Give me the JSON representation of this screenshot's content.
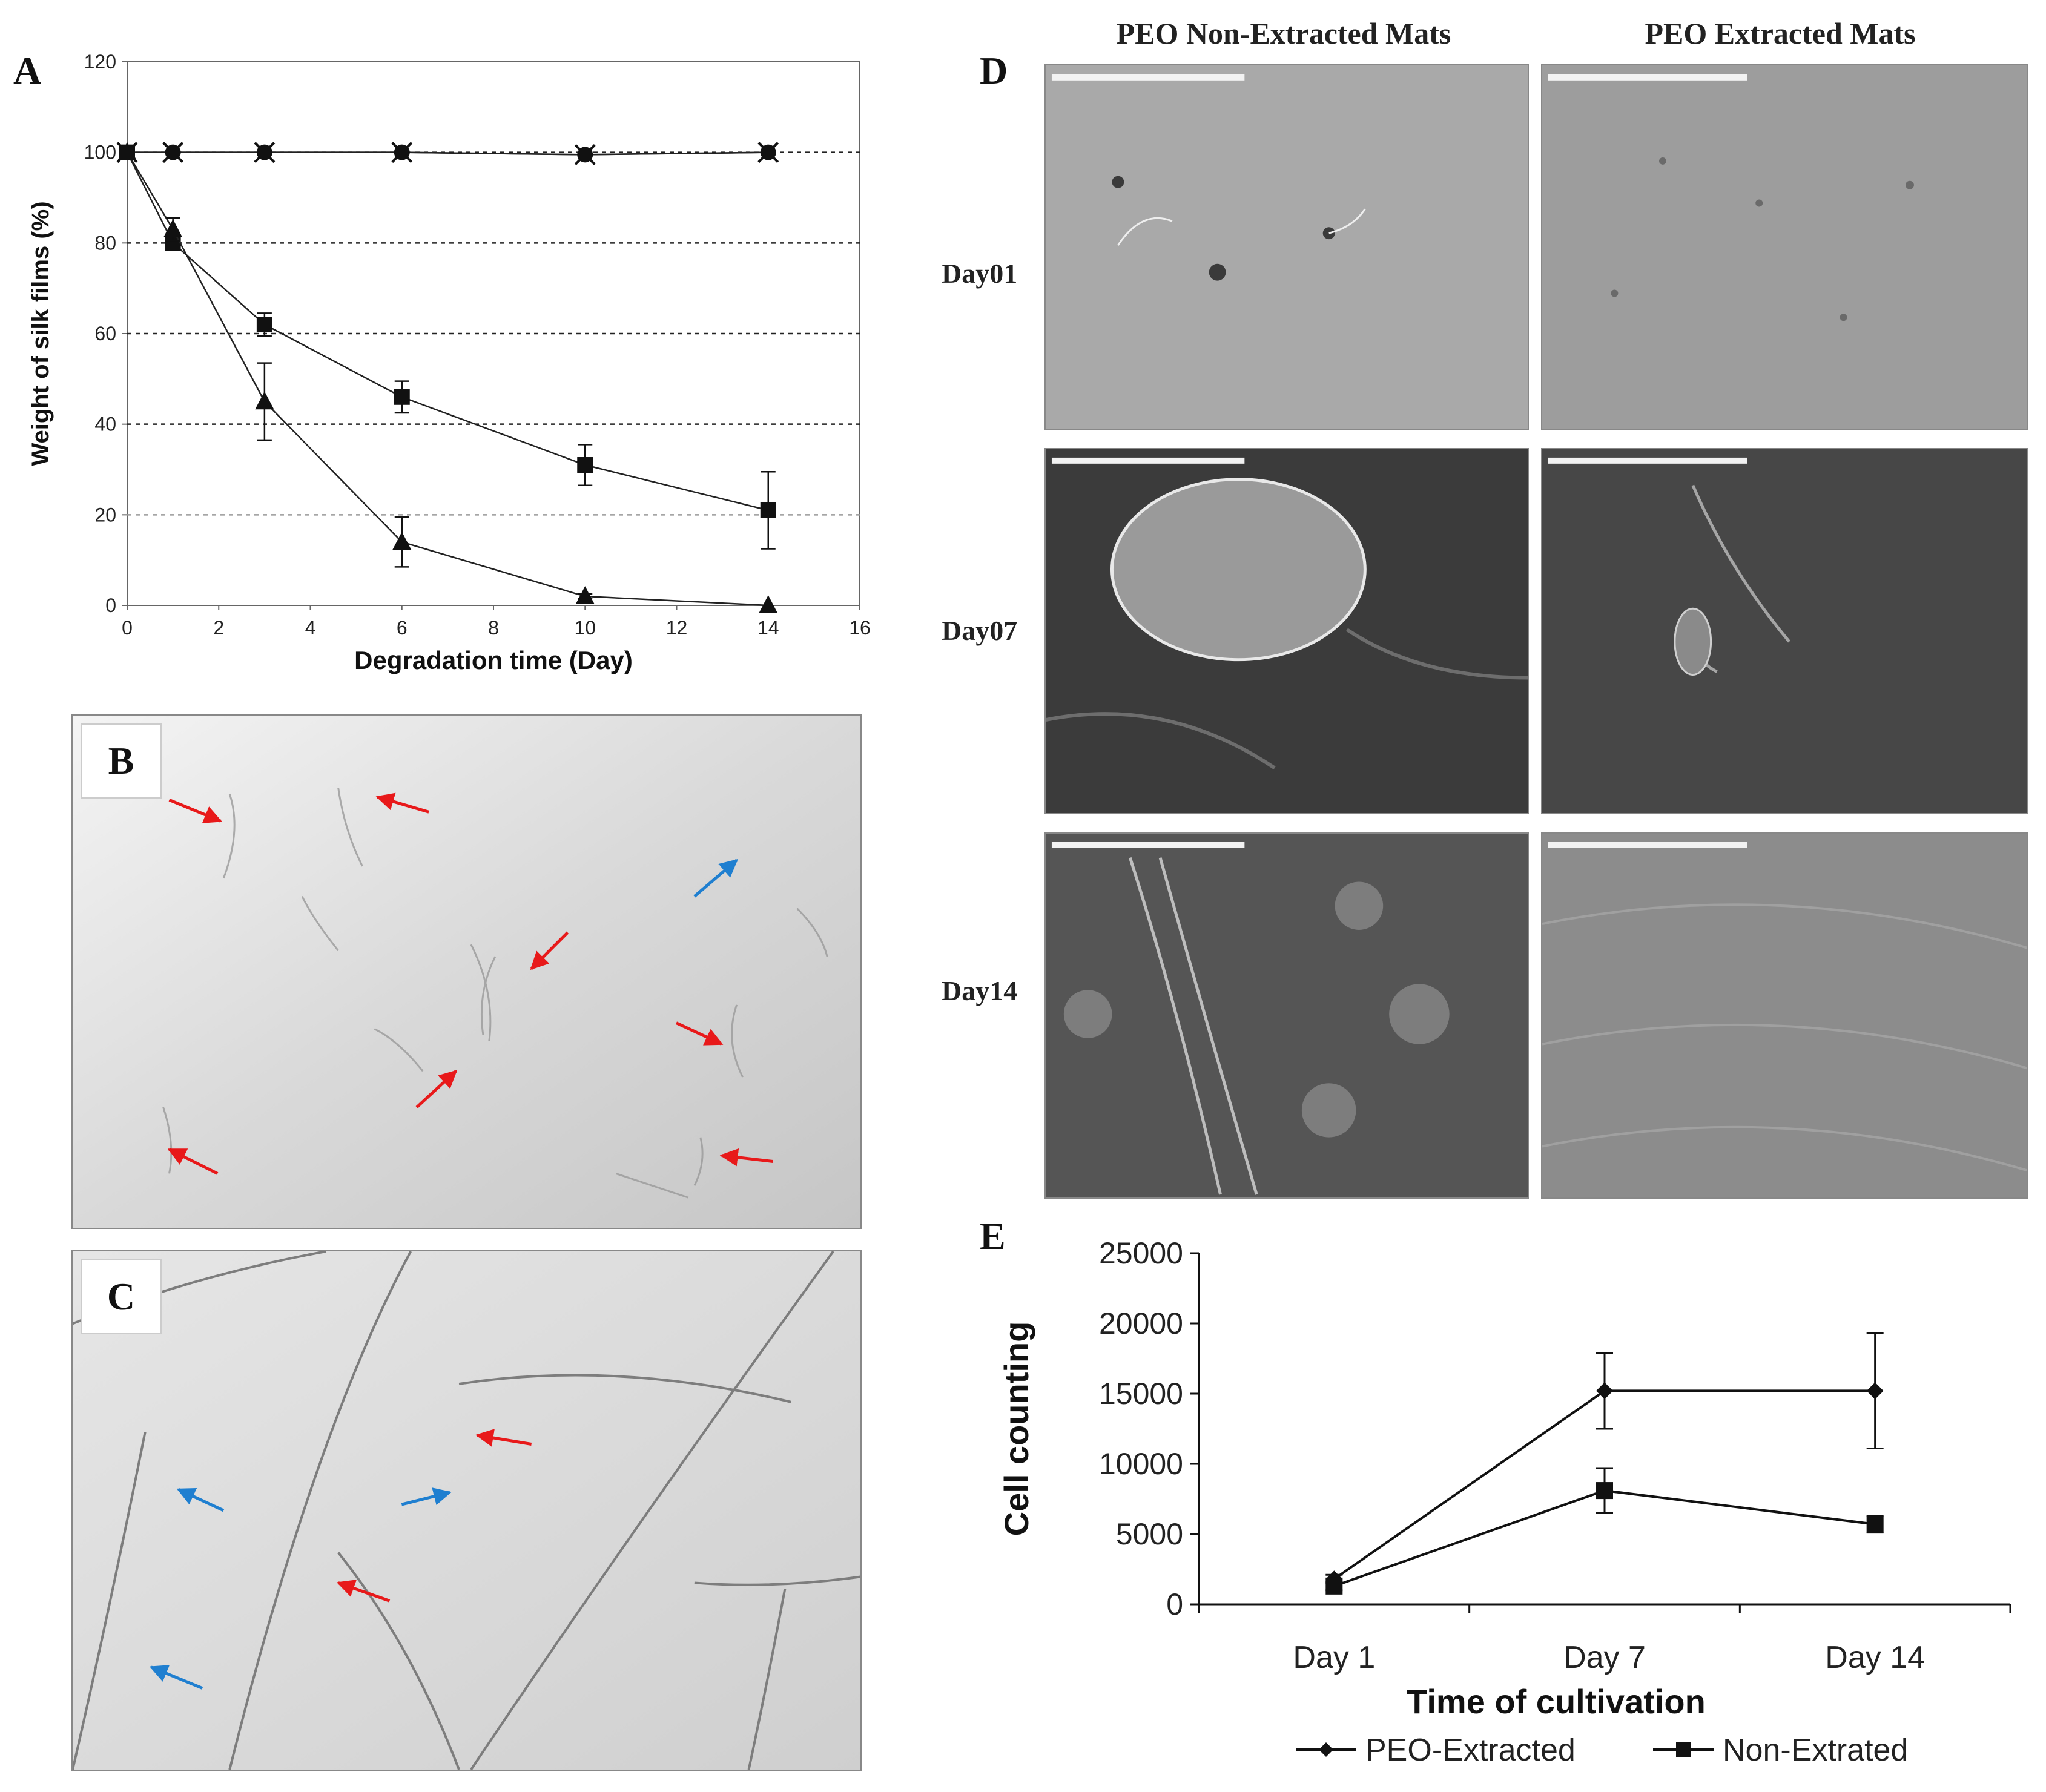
{
  "panels": {
    "a": {
      "letter": "A"
    },
    "b": {
      "letter": "B"
    },
    "c": {
      "letter": "C"
    },
    "d": {
      "letter": "D",
      "col_headers": [
        "PEO Non-Extracted Mats",
        "PEO Extracted Mats"
      ],
      "row_headers": [
        "Day01",
        "Day07",
        "Day14"
      ]
    },
    "e": {
      "letter": "E"
    }
  },
  "chart_data": [
    {
      "panel": "A",
      "type": "line",
      "title": "",
      "xlabel": "Degradation time (Day)",
      "ylabel": "Weight of silk films (%)",
      "xlim": [
        0,
        16
      ],
      "ylim": [
        0,
        120
      ],
      "xticks": [
        0,
        2,
        4,
        6,
        8,
        10,
        12,
        14,
        16
      ],
      "yticks": [
        0,
        20,
        40,
        60,
        80,
        100,
        120
      ],
      "grid": "horizontal dashed",
      "series": [
        {
          "marker": "cross",
          "x": [
            0,
            1,
            3,
            6,
            10,
            14
          ],
          "y": [
            100,
            100,
            100,
            100,
            99.5,
            100
          ],
          "err": [
            0,
            0,
            0,
            0,
            0,
            0
          ]
        },
        {
          "marker": "circle",
          "x": [
            0,
            1,
            3,
            6,
            10,
            14
          ],
          "y": [
            100,
            100,
            100,
            100,
            99.5,
            100
          ],
          "err": [
            0,
            0,
            0,
            0,
            0,
            0
          ]
        },
        {
          "marker": "square",
          "x": [
            0,
            1,
            3,
            6,
            10,
            14
          ],
          "y": [
            100,
            80,
            62,
            46,
            31,
            21
          ],
          "err": [
            0,
            1.5,
            2.5,
            3.5,
            4.5,
            8.5
          ]
        },
        {
          "marker": "triangle",
          "x": [
            0,
            1,
            3,
            6,
            10,
            14
          ],
          "y": [
            100,
            83,
            45,
            14,
            2,
            0
          ],
          "err": [
            0,
            2.5,
            8.5,
            5.5,
            0.5,
            0
          ]
        }
      ]
    },
    {
      "panel": "E",
      "type": "line",
      "title": "",
      "xlabel": "Time of cultivation",
      "ylabel": "Cell counting",
      "categories": [
        "Day 1",
        "Day 7",
        "Day 14"
      ],
      "ylim": [
        0,
        25000
      ],
      "yticks": [
        0,
        5000,
        10000,
        15000,
        20000,
        25000
      ],
      "legend_position": "bottom",
      "series": [
        {
          "name": "PEO-Extracted",
          "marker": "diamond",
          "values": [
            1800,
            15200,
            15200
          ],
          "err": [
            300,
            2700,
            4100
          ]
        },
        {
          "name": "Non-Extrated",
          "marker": "square",
          "values": [
            1300,
            8100,
            5700
          ],
          "err": [
            300,
            1600,
            600
          ]
        }
      ]
    }
  ],
  "colors": {
    "red_arrow": "#e8191a",
    "blue_arrow": "#1f7fd0"
  }
}
